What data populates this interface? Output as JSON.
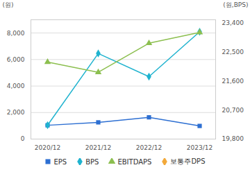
{
  "chart_data": {
    "type": "line",
    "ylabel": "(원)",
    "y2label": "(원,BPS)",
    "categories": [
      "2020/12",
      "2021/12",
      "2022/12",
      "2023/12"
    ],
    "series": [
      {
        "name": "EPS",
        "color": "#2d6fd2",
        "marker": "square",
        "values": [
          1040,
          1260,
          1640,
          990
        ]
      },
      {
        "name": "BPS",
        "color": "#1fb3cf",
        "marker": "diamond",
        "axis": "y2",
        "values": [
          20230,
          22455,
          21735,
          23130
        ]
      },
      {
        "name": "EBITDAPS",
        "color": "#8cbf4f",
        "marker": "triangle",
        "values": [
          5810,
          5040,
          7230,
          8050
        ]
      },
      {
        "name": "보통주DPS",
        "color": "#f2a93b",
        "marker": "diamond",
        "values": [
          null,
          null,
          null,
          null
        ]
      }
    ],
    "ylim": [
      0,
      9000
    ],
    "yticks": [
      0,
      {
        "value": 2000,
        "label": "2,000"
      },
      {
        "value": 4000,
        "label": "4,000"
      },
      {
        "value": 6000,
        "label": "6,000"
      },
      {
        "value": 8000,
        "label": "8,000"
      }
    ],
    "y2lim": [
      19800,
      23500
    ],
    "y2ticks": [
      {
        "value": 19800,
        "label": "19,800"
      },
      {
        "value": 20700,
        "label": "20,700"
      },
      {
        "value": 21600,
        "label": "21,600"
      },
      {
        "value": 22500,
        "label": "22,500"
      },
      {
        "value": 23400,
        "label": "23,400"
      }
    ],
    "grid": true,
    "legend": "bottom"
  }
}
